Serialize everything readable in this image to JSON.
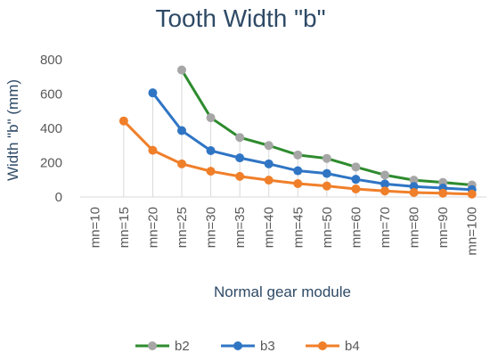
{
  "chart_data": {
    "type": "line",
    "title": "Tooth Width \"b\"",
    "xlabel": "Normal gear module",
    "ylabel": "Width \"b\" (mm)",
    "ylim": [
      0,
      800
    ],
    "yticks": [
      0,
      200,
      400,
      600,
      800
    ],
    "categories": [
      "mn=10",
      "mn=15",
      "mn=20",
      "mn=25",
      "mn=30",
      "mn=35",
      "mn=40",
      "mn=45",
      "mn=50",
      "mn=60",
      "mn=70",
      "mn=80",
      "mn=90",
      "mn=100"
    ],
    "grid": false,
    "drop_lines": true,
    "legend": "bottom",
    "series": [
      {
        "name": "b2",
        "line_color": "#2e8b2e",
        "marker_color": "#a6a6a6",
        "values": [
          null,
          null,
          null,
          740,
          462,
          347,
          300,
          245,
          225,
          175,
          128,
          98,
          85,
          70
        ]
      },
      {
        "name": "b3",
        "line_color": "#2f75c4",
        "marker_color": "#2f75c4",
        "values": [
          null,
          null,
          607,
          387,
          270,
          228,
          193,
          153,
          137,
          103,
          76,
          61,
          52,
          43
        ]
      },
      {
        "name": "b4",
        "line_color": "#f07f2a",
        "marker_color": "#f07f2a",
        "values": [
          null,
          443,
          272,
          193,
          150,
          120,
          98,
          78,
          64,
          47,
          35,
          26,
          22,
          17
        ]
      }
    ]
  }
}
